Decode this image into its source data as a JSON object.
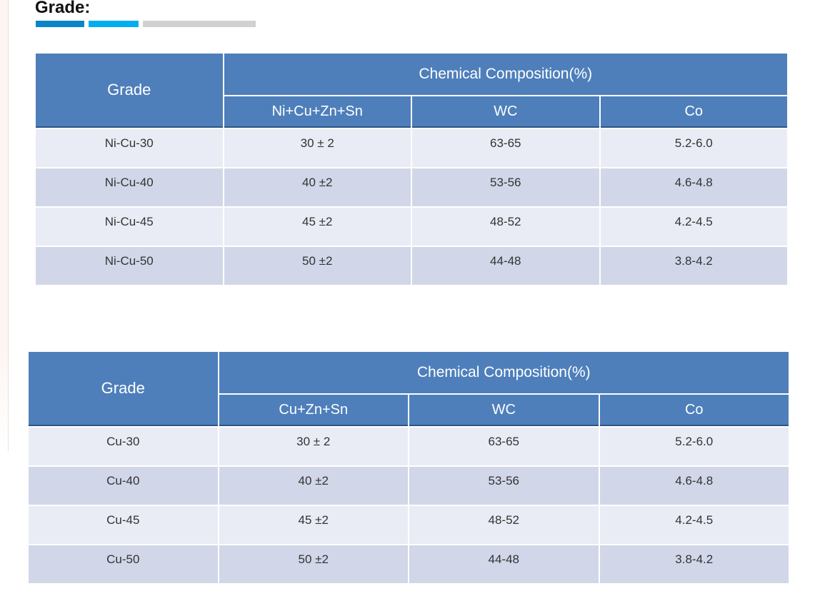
{
  "page_title": "Grade:",
  "accent_bars": {
    "dark_blue": "#0a85c7",
    "light_blue": "#00aeef",
    "gray": "#d2d1d1"
  },
  "theme": {
    "header_blue": "#4e7fbb",
    "header_border_dark": "#2f5584",
    "row_light": "#e9ecf4",
    "row_dark": "#d1d7e8",
    "cell_text": "#333333",
    "header_text": "#ffffff"
  },
  "tables": [
    {
      "grade_header": "Grade",
      "composition_header": "Chemical Composition(%)",
      "sub_headers": [
        "Ni+Cu+Zn+Sn",
        "WC",
        "Co"
      ],
      "rows": [
        {
          "grade": "Ni-Cu-30",
          "binder": "30 ± 2",
          "wc": "63-65",
          "co": "5.2-6.0"
        },
        {
          "grade": "Ni-Cu-40",
          "binder": "40 ±2",
          "wc": "53-56",
          "co": "4.6-4.8"
        },
        {
          "grade": "Ni-Cu-45",
          "binder": "45 ±2",
          "wc": "48-52",
          "co": "4.2-4.5"
        },
        {
          "grade": "Ni-Cu-50",
          "binder": "50 ±2",
          "wc": "44-48",
          "co": "3.8-4.2"
        }
      ]
    },
    {
      "grade_header": "Grade",
      "composition_header": "Chemical Composition(%)",
      "sub_headers": [
        "Cu+Zn+Sn",
        "WC",
        "Co"
      ],
      "rows": [
        {
          "grade": "Cu-30",
          "binder": "30 ± 2",
          "wc": "63-65",
          "co": "5.2-6.0"
        },
        {
          "grade": "Cu-40",
          "binder": "40 ±2",
          "wc": "53-56",
          "co": "4.6-4.8"
        },
        {
          "grade": "Cu-45",
          "binder": "45 ±2",
          "wc": "48-52",
          "co": "4.2-4.5"
        },
        {
          "grade": "Cu-50",
          "binder": "50 ±2",
          "wc": "44-48",
          "co": "3.8-4.2"
        }
      ]
    }
  ]
}
